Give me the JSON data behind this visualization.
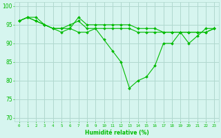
{
  "title": "",
  "xlabel": "Humidité relative (%)",
  "ylabel": "",
  "xlim": [
    -0.5,
    23.5
  ],
  "ylim": [
    69,
    101
  ],
  "yticks": [
    70,
    75,
    80,
    85,
    90,
    95,
    100
  ],
  "xticks": [
    0,
    1,
    2,
    3,
    4,
    5,
    6,
    7,
    8,
    9,
    10,
    11,
    12,
    13,
    14,
    15,
    16,
    17,
    18,
    19,
    20,
    21,
    22,
    23
  ],
  "bg_color": "#d6f5ef",
  "grid_color": "#b0d8cf",
  "line_color": "#00bb00",
  "series": [
    [
      96,
      97,
      97,
      95,
      94,
      94,
      95,
      96,
      94,
      94,
      91,
      88,
      85,
      78,
      80,
      81,
      84,
      90,
      90,
      93,
      90,
      92,
      94,
      94
    ],
    [
      96,
      97,
      96,
      95,
      94,
      93,
      94,
      93,
      93,
      94,
      94,
      94,
      94,
      94,
      93,
      93,
      93,
      93,
      93,
      93,
      93,
      93,
      93,
      94
    ],
    [
      96,
      97,
      96,
      95,
      94,
      94,
      94,
      97,
      95,
      95,
      95,
      95,
      95,
      95,
      94,
      94,
      94,
      93,
      93,
      93,
      93,
      93,
      93,
      94
    ]
  ]
}
